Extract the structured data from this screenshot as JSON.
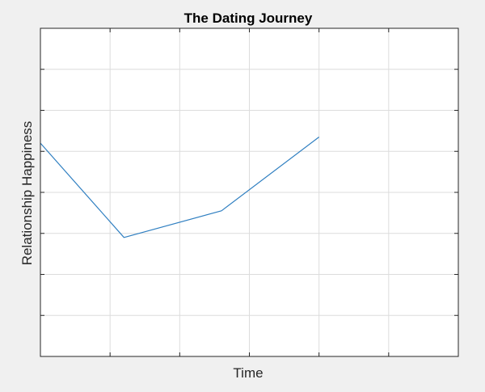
{
  "chart_data": {
    "type": "line",
    "title": "The Dating Journey",
    "xlabel": "Time",
    "ylabel": "Relationship Happiness",
    "xlim": [
      0,
      6
    ],
    "ylim": [
      0,
      8
    ],
    "xticks": [
      0,
      1,
      2,
      3,
      4,
      5,
      6
    ],
    "yticks": [
      0,
      1,
      2,
      3,
      4,
      5,
      6,
      7,
      8
    ],
    "grid": true,
    "tick_labels_shown": false,
    "series": [
      {
        "x": [
          0,
          1.2,
          2.6,
          4.0
        ],
        "y": [
          5.2,
          2.9,
          3.55,
          5.35
        ]
      }
    ],
    "colors": {
      "line": "#2f7fc1",
      "grid": "#dcdcdc",
      "axes": "#262626",
      "plot_bg": "#ffffff",
      "figure_bg": "#f0f0f0",
      "text": "#000000"
    }
  }
}
